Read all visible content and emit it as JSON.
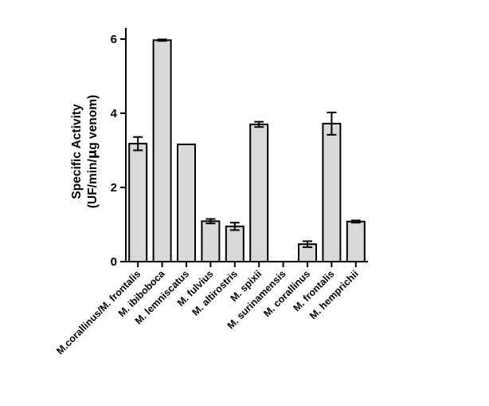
{
  "chart_data": {
    "type": "bar",
    "title": "",
    "xlabel": "",
    "ylabel": {
      "line1": "Specific Activity",
      "line2_prefix": "(UF/min/",
      "line2_greek": "μ",
      "line2_suffix": "g venom)"
    },
    "ylim": [
      0,
      6.3
    ],
    "yticks": [
      0,
      2,
      4,
      6
    ],
    "grid": false,
    "legend": "none",
    "colors": {
      "bar_fill": "#d9d9d9",
      "bar_stroke": "#000000",
      "axis": "#000000"
    },
    "categories": [
      "M.corallinus/M. frontalis",
      "M. ibiboboca",
      "M. lemniscatus",
      "M. fulvius",
      "M. altirostris",
      "M. spixii",
      "M. surinamensis",
      "M. corallinus",
      "M. frontalis",
      "M. hemprichii"
    ],
    "values": [
      3.18,
      5.97,
      3.16,
      1.09,
      0.95,
      3.7,
      0.0,
      0.47,
      3.72,
      1.08
    ],
    "errors": [
      0.18,
      0.02,
      0.0,
      0.06,
      0.1,
      0.07,
      0.0,
      0.08,
      0.3,
      0.03
    ]
  }
}
